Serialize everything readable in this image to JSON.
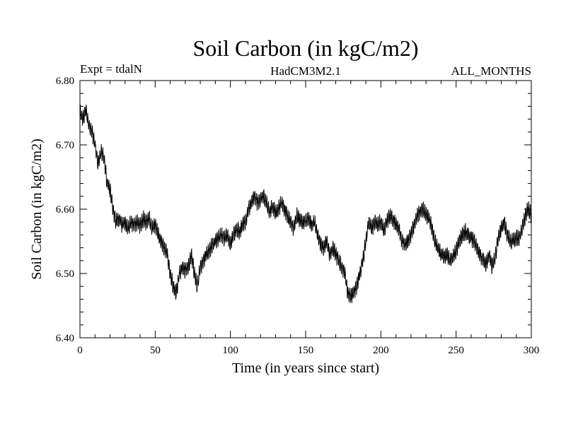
{
  "chart_data": {
    "type": "line",
    "title": "Soil Carbon (in kgC/m2)",
    "subtitle_left": "Expt = tdalN",
    "subtitle_center": "HadCM3M2.1",
    "subtitle_right": "ALL_MONTHS",
    "xlabel": "Time (in years since start)",
    "ylabel": "Soil Carbon (in kgC/m2)",
    "xlim": [
      0,
      300
    ],
    "ylim": [
      6.4,
      6.8
    ],
    "x_ticks": [
      {
        "value": 0,
        "label": "0"
      },
      {
        "value": 50,
        "label": "50"
      },
      {
        "value": 100,
        "label": "100"
      },
      {
        "value": 150,
        "label": "150"
      },
      {
        "value": 200,
        "label": "200"
      },
      {
        "value": 250,
        "label": "250"
      },
      {
        "value": 300,
        "label": "300"
      }
    ],
    "y_ticks": [
      {
        "value": 6.4,
        "label": "6.40"
      },
      {
        "value": 6.5,
        "label": "6.50"
      },
      {
        "value": 6.6,
        "label": "6.60"
      },
      {
        "value": 6.7,
        "label": "6.70"
      },
      {
        "value": 6.8,
        "label": "6.80"
      }
    ],
    "grid": false,
    "line_color": "#000000",
    "series": [
      {
        "x": [
          0,
          2,
          4,
          6,
          8,
          10,
          12,
          14,
          16,
          18,
          20,
          22,
          24,
          26,
          28,
          30,
          32,
          34,
          36,
          38,
          40,
          42,
          44,
          46,
          48,
          50,
          52,
          54,
          56,
          58,
          60,
          62,
          64,
          66,
          68,
          70,
          72,
          74,
          76,
          78,
          80,
          82,
          84,
          86,
          88,
          90,
          92,
          94,
          96,
          98,
          100,
          102,
          104,
          106,
          108,
          110,
          112,
          114,
          116,
          118,
          120,
          122,
          124,
          126,
          128,
          130,
          132,
          134,
          136,
          138,
          140,
          142,
          144,
          146,
          148,
          150,
          152,
          154,
          156,
          158,
          160,
          162,
          164,
          166,
          168,
          170,
          172,
          174,
          176,
          178,
          180,
          182,
          184,
          186,
          188,
          190,
          192,
          194,
          196,
          198,
          200,
          202,
          204,
          206,
          208,
          210,
          212,
          214,
          216,
          218,
          220,
          222,
          224,
          226,
          228,
          230,
          232,
          234,
          236,
          238,
          240,
          242,
          244,
          246,
          248,
          250,
          252,
          254,
          256,
          258,
          260,
          262,
          264,
          266,
          268,
          270,
          272,
          274,
          276,
          278,
          280,
          282,
          284,
          286,
          288,
          290,
          292,
          294,
          296,
          298,
          300
        ],
        "y": [
          6.75,
          6.74,
          6.755,
          6.73,
          6.72,
          6.7,
          6.67,
          6.69,
          6.68,
          6.64,
          6.63,
          6.6,
          6.58,
          6.585,
          6.575,
          6.58,
          6.57,
          6.58,
          6.575,
          6.58,
          6.575,
          6.585,
          6.58,
          6.585,
          6.57,
          6.575,
          6.56,
          6.55,
          6.54,
          6.53,
          6.5,
          6.48,
          6.47,
          6.5,
          6.51,
          6.505,
          6.51,
          6.53,
          6.5,
          6.48,
          6.51,
          6.52,
          6.53,
          6.535,
          6.545,
          6.55,
          6.555,
          6.56,
          6.555,
          6.56,
          6.545,
          6.56,
          6.57,
          6.565,
          6.575,
          6.58,
          6.6,
          6.61,
          6.62,
          6.61,
          6.615,
          6.62,
          6.61,
          6.595,
          6.605,
          6.595,
          6.6,
          6.61,
          6.6,
          6.59,
          6.58,
          6.57,
          6.59,
          6.585,
          6.58,
          6.58,
          6.585,
          6.575,
          6.58,
          6.56,
          6.545,
          6.54,
          6.55,
          6.53,
          6.54,
          6.53,
          6.52,
          6.51,
          6.5,
          6.47,
          6.465,
          6.47,
          6.48,
          6.5,
          6.52,
          6.55,
          6.58,
          6.57,
          6.58,
          6.575,
          6.58,
          6.565,
          6.58,
          6.59,
          6.585,
          6.575,
          6.57,
          6.55,
          6.545,
          6.55,
          6.56,
          6.575,
          6.59,
          6.595,
          6.6,
          6.59,
          6.585,
          6.57,
          6.55,
          6.54,
          6.53,
          6.525,
          6.53,
          6.52,
          6.525,
          6.535,
          6.55,
          6.56,
          6.565,
          6.56,
          6.555,
          6.55,
          6.54,
          6.53,
          6.52,
          6.515,
          6.53,
          6.51,
          6.525,
          6.555,
          6.57,
          6.58,
          6.56,
          6.55,
          6.55,
          6.555,
          6.555,
          6.57,
          6.59,
          6.6,
          6.59
        ],
        "noise_band": 0.02
      }
    ]
  }
}
